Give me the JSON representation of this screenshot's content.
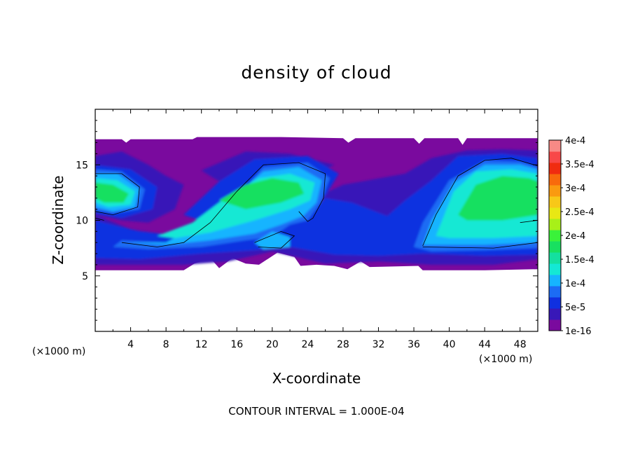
{
  "chart_data": {
    "type": "heatmap",
    "title": "density of cloud",
    "xlabel": "X-coordinate",
    "ylabel": "Z-coordinate",
    "x_unit": "(×1000 m)",
    "z_unit": "(×1000 m)",
    "xlim": [
      0,
      50
    ],
    "ylim": [
      0,
      20
    ],
    "xticks": [
      4,
      8,
      12,
      16,
      20,
      24,
      28,
      32,
      36,
      40,
      44,
      48
    ],
    "yticks": [
      5,
      10,
      15
    ],
    "footer": "CONTOUR INTERVAL = 1.000E-04",
    "colorbar": {
      "labels": [
        "1e-16",
        "5e-5",
        "1e-4",
        "1.5e-4",
        "2e-4",
        "2.5e-4",
        "3e-4",
        "3.5e-4",
        "4e-4"
      ],
      "levels": [
        1e-16,
        5e-05,
        0.0001,
        0.00015,
        0.0002,
        0.00025,
        0.0003,
        0.00035,
        0.0004
      ],
      "colors": [
        "#7a0a9e",
        "#3818b8",
        "#1030e0",
        "#1c6cf4",
        "#16b4ff",
        "#14e8d4",
        "#14e0a0",
        "#18e060",
        "#3af23a",
        "#a8f018",
        "#e8e814",
        "#f8c818",
        "#fa9a10",
        "#f86a0c",
        "#f02c10",
        "#f84848",
        "#f88a86"
      ]
    },
    "cloud_layer": {
      "base_approx": 5.5,
      "top_approx": 17.3
    },
    "cells": [
      {
        "x": 2,
        "z": 12.5,
        "value": 0.00018
      },
      {
        "x": 19,
        "z": 13.5,
        "value": 0.0002
      },
      {
        "x": 13,
        "z": 9.5,
        "value": 0.00017
      },
      {
        "x": 45,
        "z": 12.0,
        "value": 0.00019
      },
      {
        "x": 30,
        "z": 11.0,
        "value": 5e-05
      },
      {
        "x": 25,
        "z": 16.5,
        "value": 1e-16
      }
    ]
  }
}
